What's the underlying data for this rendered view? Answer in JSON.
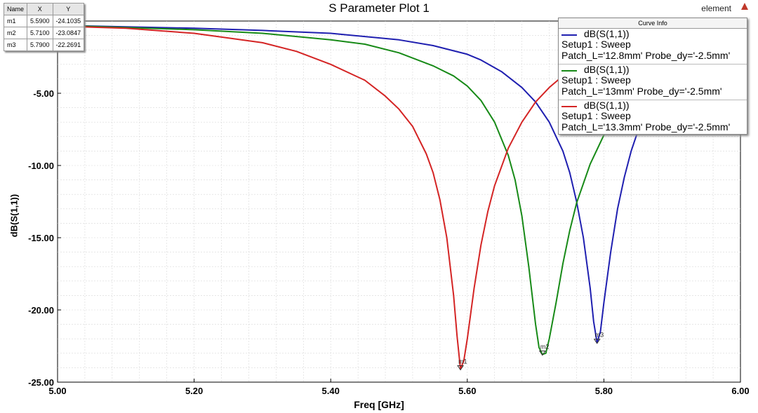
{
  "header": {
    "title": "S Parameter Plot 1",
    "brand": "element"
  },
  "marker_table": {
    "columns": [
      "Name",
      "X",
      "Y"
    ],
    "rows": [
      [
        "m1",
        "5.5900",
        "-24.1035"
      ],
      [
        "m2",
        "5.7100",
        "-23.0847"
      ],
      [
        "m3",
        "5.7900",
        "-22.2691"
      ]
    ]
  },
  "legend": {
    "header": "Curve Info",
    "items": [
      {
        "name": "dB(S(1,1))",
        "setup": "Setup1 : Sweep",
        "vars": "Patch_L='12.8mm' Probe_dy='-2.5mm'",
        "color": "#1f1fb0"
      },
      {
        "name": "dB(S(1,1))",
        "setup": "Setup1 : Sweep",
        "vars": "Patch_L='13mm' Probe_dy='-2.5mm'",
        "color": "#178a17"
      },
      {
        "name": "dB(S(1,1))",
        "setup": "Setup1 : Sweep",
        "vars": "Patch_L='13.3mm' Probe_dy='-2.5mm'",
        "color": "#d42424"
      }
    ]
  },
  "chart_data": {
    "type": "line",
    "xlabel": "Freq [GHz]",
    "ylabel": "dB(S(1,1))",
    "xlim": [
      5.0,
      6.0
    ],
    "ylim": [
      -25.0,
      0.0
    ],
    "x_ticks": [
      5.0,
      5.2,
      5.4,
      5.6,
      5.8,
      6.0
    ],
    "x_tick_labels": [
      "5.00",
      "5.20",
      "5.40",
      "5.60",
      "5.80",
      "6.00"
    ],
    "y_ticks": [
      -5,
      -10,
      -15,
      -20,
      -25
    ],
    "y_tick_labels": [
      "-5.00",
      "-10.00",
      "-15.00",
      "-20.00",
      "-25.00"
    ],
    "grid": true,
    "legend_position": "top-right",
    "series": [
      {
        "name": "dB(S(1,1)) Patch_L='12.8mm' Probe_dy='-2.5mm'",
        "color": "#1f1fb0",
        "x": [
          5.0,
          5.1,
          5.2,
          5.3,
          5.4,
          5.5,
          5.55,
          5.6,
          5.62,
          5.65,
          5.68,
          5.7,
          5.72,
          5.74,
          5.75,
          5.76,
          5.77,
          5.78,
          5.785,
          5.79,
          5.795,
          5.8,
          5.81,
          5.82,
          5.83,
          5.84,
          5.85,
          5.86,
          5.87,
          5.88
        ],
        "y": [
          -0.3,
          -0.4,
          -0.5,
          -0.65,
          -0.85,
          -1.3,
          -1.7,
          -2.3,
          -2.7,
          -3.5,
          -4.6,
          -5.6,
          -7.0,
          -9.0,
          -10.5,
          -12.5,
          -15.0,
          -18.5,
          -20.8,
          -22.27,
          -21.5,
          -19.5,
          -16.0,
          -13.0,
          -10.8,
          -9.0,
          -7.6,
          -6.4,
          -5.4,
          -4.6
        ]
      },
      {
        "name": "dB(S(1,1)) Patch_L='13mm' Probe_dy='-2.5mm'",
        "color": "#178a17",
        "x": [
          5.0,
          5.1,
          5.2,
          5.3,
          5.4,
          5.45,
          5.5,
          5.55,
          5.58,
          5.6,
          5.62,
          5.64,
          5.66,
          5.67,
          5.68,
          5.69,
          5.7,
          5.705,
          5.71,
          5.715,
          5.72,
          5.73,
          5.74,
          5.75,
          5.76,
          5.78,
          5.8,
          5.82,
          5.84,
          5.86
        ],
        "y": [
          -0.3,
          -0.45,
          -0.6,
          -0.85,
          -1.3,
          -1.6,
          -2.2,
          -3.1,
          -3.8,
          -4.5,
          -5.5,
          -7.0,
          -9.3,
          -11.0,
          -13.5,
          -17.0,
          -21.0,
          -22.6,
          -23.08,
          -23.0,
          -22.0,
          -19.5,
          -16.8,
          -14.5,
          -12.6,
          -9.9,
          -7.9,
          -6.5,
          -5.3,
          -4.3
        ]
      },
      {
        "name": "dB(S(1,1)) Patch_L='13.3mm' Probe_dy='-2.5mm'",
        "color": "#d42424",
        "x": [
          5.0,
          5.1,
          5.2,
          5.3,
          5.35,
          5.4,
          5.45,
          5.48,
          5.5,
          5.52,
          5.54,
          5.55,
          5.56,
          5.57,
          5.58,
          5.585,
          5.59,
          5.595,
          5.6,
          5.61,
          5.62,
          5.63,
          5.64,
          5.66,
          5.68,
          5.7,
          5.72,
          5.74,
          5.76,
          5.78
        ],
        "y": [
          -0.35,
          -0.5,
          -0.85,
          -1.5,
          -2.1,
          -3.0,
          -4.1,
          -5.2,
          -6.1,
          -7.3,
          -9.2,
          -10.5,
          -12.4,
          -15.0,
          -19.0,
          -21.8,
          -24.1,
          -23.5,
          -22.0,
          -18.5,
          -15.5,
          -13.2,
          -11.4,
          -8.8,
          -7.0,
          -5.6,
          -4.6,
          -3.8,
          -3.2,
          -2.7
        ]
      }
    ],
    "markers": [
      {
        "label": "m1",
        "x": 5.59,
        "y": -24.1035
      },
      {
        "label": "m2",
        "x": 5.71,
        "y": -23.0847
      },
      {
        "label": "m3",
        "x": 5.79,
        "y": -22.2691
      }
    ]
  }
}
